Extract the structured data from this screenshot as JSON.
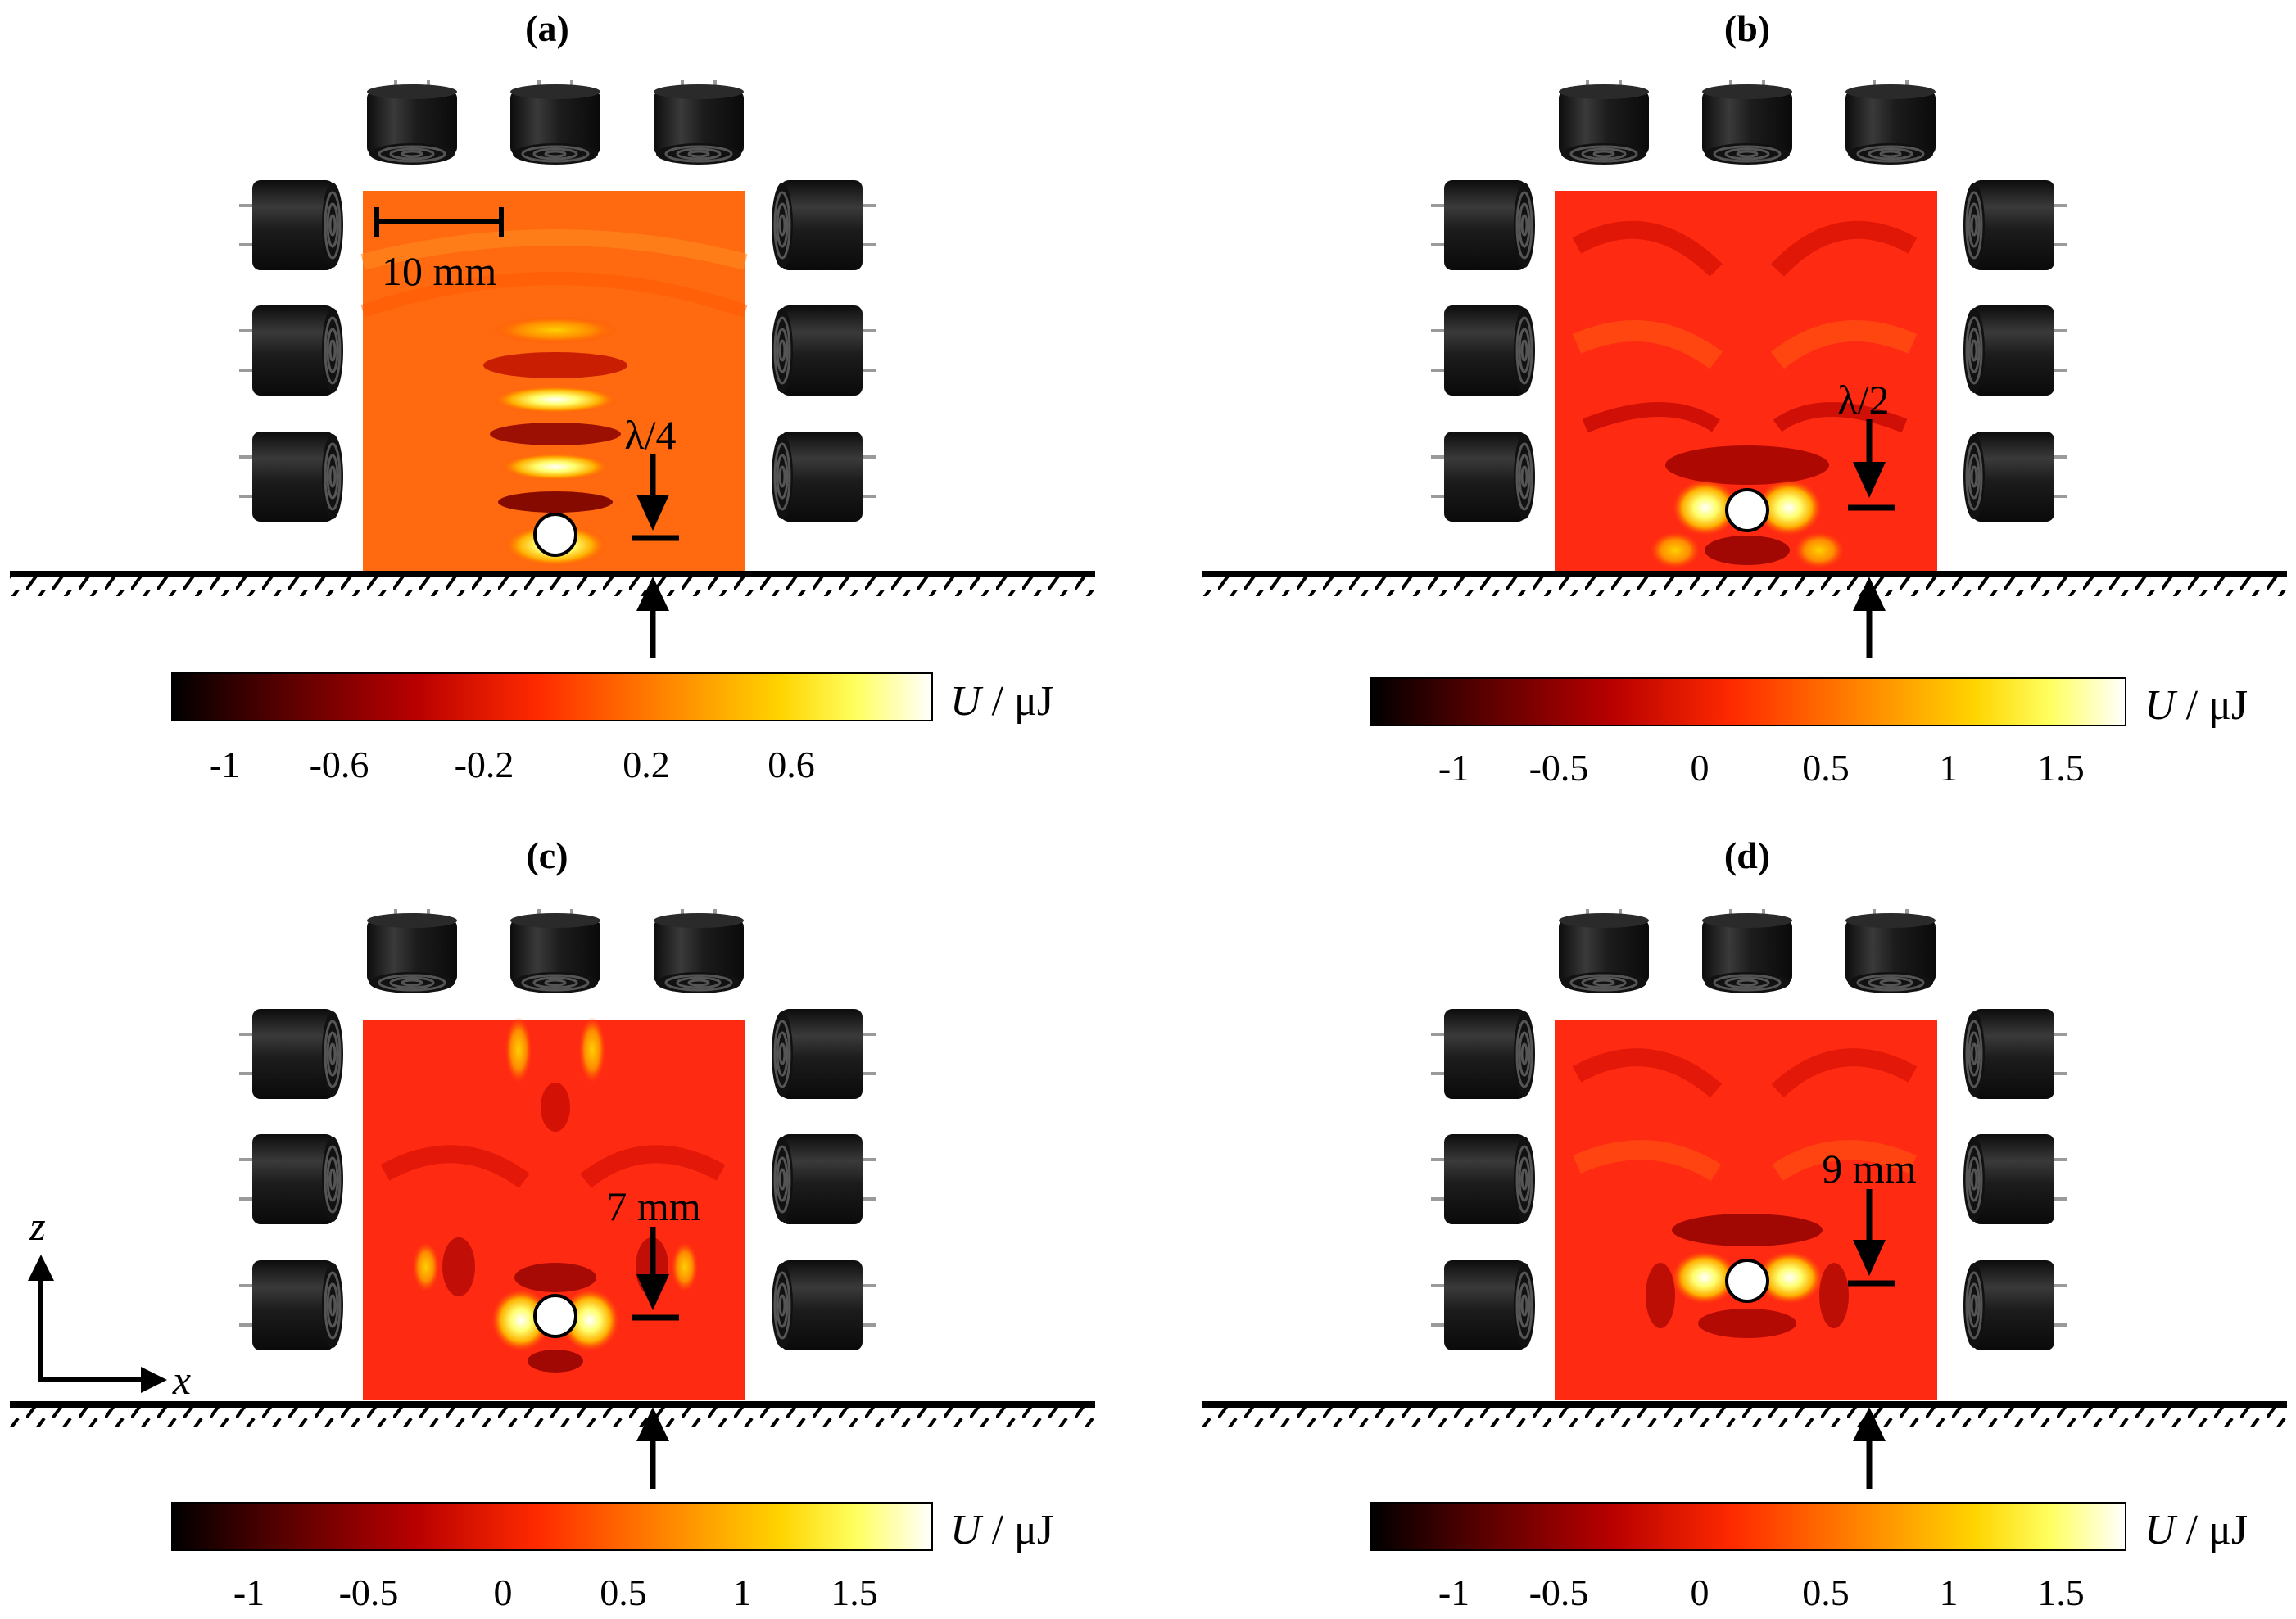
{
  "panels": [
    {
      "label": "(a)",
      "annotation": "λ/4",
      "scale_bar": "10 mm",
      "colorbar": {
        "label_symbol": "U",
        "label_unit": " / μJ",
        "ticks": [
          "-1",
          "-0.6",
          "-0.2",
          "0.2",
          "0.6"
        ]
      }
    },
    {
      "label": "(b)",
      "annotation": "λ/2",
      "colorbar": {
        "label_symbol": "U",
        "label_unit": " / μJ",
        "ticks": [
          "-1",
          "-0.5",
          "0",
          "0.5",
          "1",
          "1.5"
        ]
      }
    },
    {
      "label": "(c)",
      "annotation": "7 mm",
      "colorbar": {
        "label_symbol": "U",
        "label_unit": " / μJ",
        "ticks": [
          "-1",
          "-0.5",
          "0",
          "0.5",
          "1",
          "1.5"
        ]
      }
    },
    {
      "label": "(d)",
      "annotation": "9 mm",
      "colorbar": {
        "label_symbol": "U",
        "label_unit": " / μJ",
        "ticks": [
          "-1",
          "-0.5",
          "0",
          "0.5",
          "1",
          "1.5"
        ]
      }
    }
  ],
  "axes": {
    "z": "z",
    "x": "x"
  },
  "colors": {
    "colormap": [
      "#000000",
      "#5a0000",
      "#b80000",
      "#ff2a00",
      "#ff8000",
      "#ffd400",
      "#ffff60",
      "#ffffff"
    ],
    "field_a": "#ff6a10",
    "field_bcd": "#ff2a12",
    "transducer": "#1a1a1a"
  }
}
